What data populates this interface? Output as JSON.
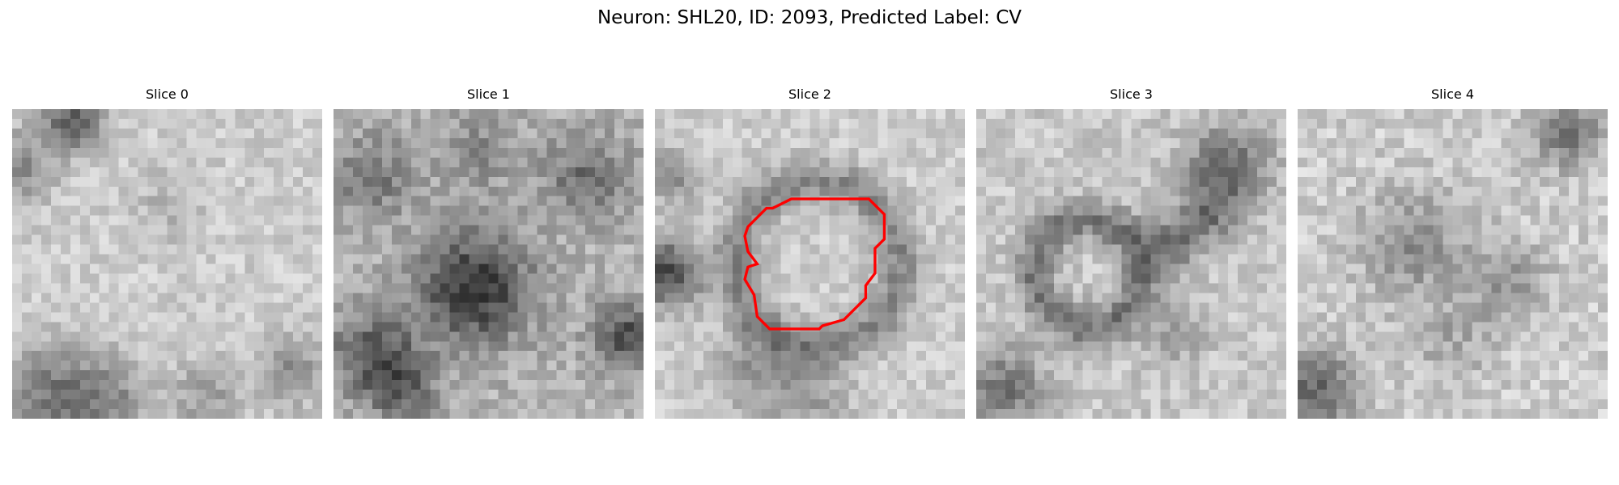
{
  "figure": {
    "title": "Neuron: SHL20, ID: 2093, Predicted Label: CV"
  },
  "panels": [
    {
      "title": "Slice 0"
    },
    {
      "title": "Slice 1"
    },
    {
      "title": "Slice 2",
      "overlay": "red contour outline",
      "overlay_color": "#ff0000"
    },
    {
      "title": "Slice 3"
    },
    {
      "title": "Slice 4"
    }
  ],
  "colormap": "gray",
  "axes_visible": false
}
